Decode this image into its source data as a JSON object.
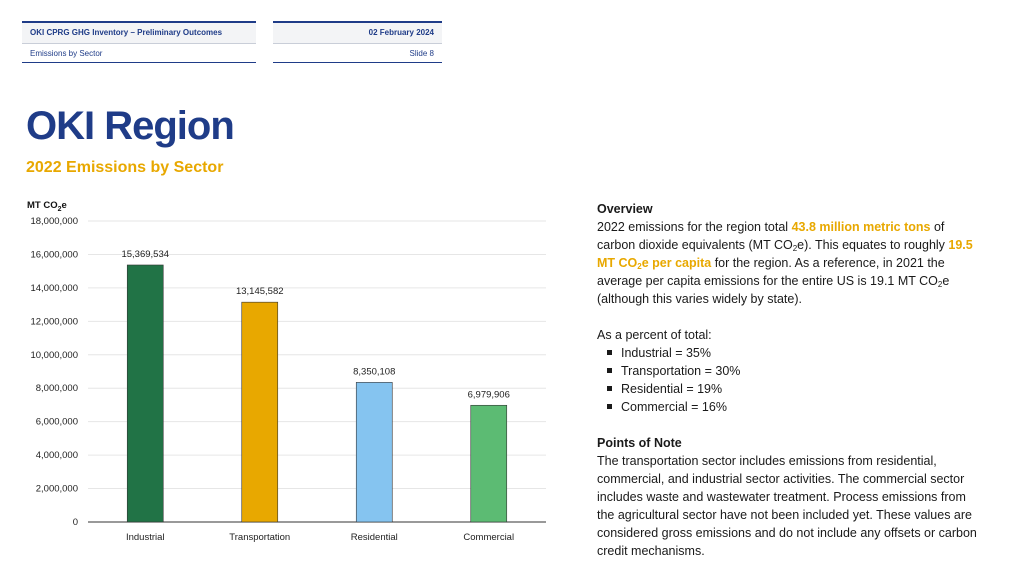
{
  "header": {
    "left_title": "OKI CPRG GHG Inventory – Preliminary Outcomes",
    "left_subtitle": "Emissions by Sector",
    "right_date": "02 February 2024",
    "right_slide": "Slide 8"
  },
  "page": {
    "title": "OKI Region",
    "subtitle": "2022 Emissions by Sector"
  },
  "chart_data": {
    "type": "bar",
    "ylabel_main": "MT CO",
    "ylabel_sub": "2",
    "ylabel_tail": "e",
    "categories": [
      "Industrial",
      "Transportation",
      "Residential",
      "Commercial"
    ],
    "values": [
      15369534,
      13145582,
      8350108,
      6979906
    ],
    "data_labels": [
      "15,369,534",
      "13,145,582",
      "8,350,108",
      "6,979,906"
    ],
    "ylim": [
      0,
      18000000
    ],
    "yticks": [
      0,
      2000000,
      4000000,
      6000000,
      8000000,
      10000000,
      12000000,
      14000000,
      16000000,
      18000000
    ],
    "ytick_labels": [
      "0",
      "2,000,000",
      "4,000,000",
      "6,000,000",
      "8,000,000",
      "10,000,000",
      "12,000,000",
      "14,000,000",
      "16,000,000",
      "18,000,000"
    ],
    "colors": [
      "#217346",
      "#e8a800",
      "#85c4f0",
      "#5cbb73"
    ],
    "grid": true
  },
  "overview": {
    "heading": "Overview",
    "p1_a": "2022 emissions for the region total ",
    "p1_hl1": "43.8 million metric tons",
    "p1_b": " of carbon dioxide equivalents (MT CO",
    "p1_sub1": "2",
    "p1_c": "e). This equates to roughly ",
    "p1_hl2a": "19.5 MT CO",
    "p1_hl2sub": "2",
    "p1_hl2b": "e per capita",
    "p1_d": " for the region. As a reference, in 2021 the average per capita emissions for the entire US is 19.1 MT CO",
    "p1_sub2": "2",
    "p1_e": "e (although this varies widely by state).",
    "pct_intro": "As a percent of total:",
    "bullets": [
      "Industrial = 35%",
      "Transportation = 30%",
      "Residential = 19%",
      "Commercial = 16%"
    ]
  },
  "notes": {
    "heading": "Points of Note",
    "body": "The transportation sector includes emissions from residential, commercial, and industrial sector activities. The commercial sector includes waste and wastewater treatment. Process emissions from the agricultural sector have not been included yet. These values are considered gross emissions and do not include any offsets or carbon credit mechanisms."
  }
}
